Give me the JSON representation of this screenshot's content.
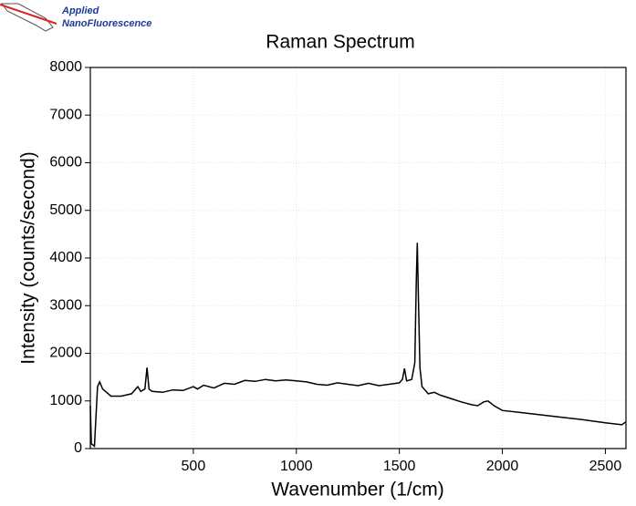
{
  "logo": {
    "line1": "Applied",
    "line2": "NanoFluorescence"
  },
  "chart_data": {
    "type": "line",
    "title": "Raman Spectrum",
    "x_label": "Wavenumber (1/cm)",
    "y_label": "Intensity (counts/second)",
    "color": "#000000",
    "grid": true,
    "xlim": [
      0,
      2600
    ],
    "xticks": [
      500,
      1000,
      1500,
      2000,
      2500
    ],
    "ylim": [
      0,
      8000
    ],
    "yticks": [
      0,
      1000,
      2000,
      3000,
      4000,
      5000,
      6000,
      7000,
      8000
    ],
    "x": [
      0,
      5,
      20,
      35,
      45,
      60,
      100,
      150,
      200,
      230,
      245,
      265,
      275,
      285,
      300,
      350,
      400,
      450,
      500,
      520,
      550,
      600,
      650,
      700,
      750,
      800,
      850,
      900,
      950,
      1000,
      1050,
      1100,
      1150,
      1200,
      1250,
      1300,
      1350,
      1400,
      1450,
      1500,
      1515,
      1525,
      1535,
      1560,
      1575,
      1582,
      1587,
      1592,
      1600,
      1610,
      1640,
      1670,
      1700,
      1750,
      1800,
      1850,
      1880,
      1910,
      1930,
      1960,
      2000,
      2100,
      2200,
      2300,
      2400,
      2500,
      2580,
      2600
    ],
    "values": [
      900,
      100,
      50,
      1300,
      1400,
      1250,
      1100,
      1100,
      1150,
      1300,
      1200,
      1250,
      1700,
      1250,
      1200,
      1180,
      1230,
      1220,
      1300,
      1250,
      1330,
      1270,
      1370,
      1350,
      1430,
      1410,
      1450,
      1420,
      1440,
      1420,
      1400,
      1350,
      1330,
      1380,
      1350,
      1320,
      1370,
      1320,
      1350,
      1380,
      1450,
      1680,
      1420,
      1450,
      1800,
      3500,
      4320,
      3300,
      1700,
      1300,
      1150,
      1180,
      1120,
      1050,
      980,
      920,
      900,
      980,
      1000,
      900,
      800,
      750,
      700,
      650,
      600,
      540,
      500,
      560
    ]
  }
}
